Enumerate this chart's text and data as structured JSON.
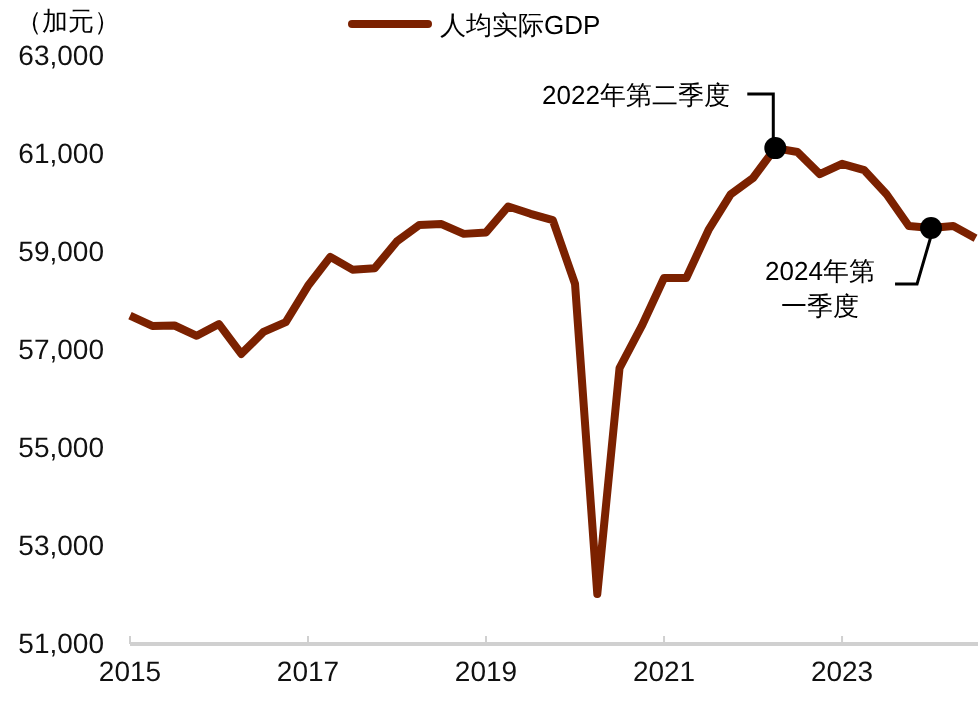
{
  "chart_data": {
    "type": "line",
    "ylabel": "（加元）",
    "legend": "top",
    "x": [
      2015,
      2015.25,
      2015.5,
      2015.75,
      2016,
      2016.25,
      2016.5,
      2016.75,
      2017,
      2017.25,
      2017.5,
      2017.75,
      2018,
      2018.25,
      2018.5,
      2018.75,
      2019,
      2019.25,
      2019.5,
      2019.75,
      2020,
      2020.25,
      2020.5,
      2020.75,
      2021,
      2021.25,
      2021.5,
      2021.75,
      2022,
      2022.25,
      2022.5,
      2022.75,
      2023,
      2023.25,
      2023.5,
      2023.75,
      2024,
      2024.25,
      2024.5
    ],
    "series": [
      {
        "name": "人均实际GDP",
        "color": "#7b2100",
        "values": [
          57700,
          57490,
          57500,
          57290,
          57530,
          56920,
          57370,
          57570,
          58310,
          58900,
          58640,
          58670,
          59220,
          59550,
          59570,
          59370,
          59400,
          59930,
          59780,
          59650,
          58350,
          52020,
          56630,
          57490,
          58470,
          58470,
          59450,
          60180,
          60510,
          61120,
          61040,
          60590,
          60800,
          60670,
          60180,
          59530,
          59490,
          59530,
          59280
        ]
      }
    ],
    "xlim": [
      2015,
      2024.55
    ],
    "xticks": [
      2015,
      2017,
      2019,
      2021,
      2023
    ],
    "ylim": [
      51000,
      63000
    ],
    "yticks": [
      {
        "value": 51000,
        "label": "51,000"
      },
      {
        "value": 53000,
        "label": "53,000"
      },
      {
        "value": 55000,
        "label": "55,000"
      },
      {
        "value": 57000,
        "label": "57,000"
      },
      {
        "value": 59000,
        "label": "59,000"
      },
      {
        "value": 61000,
        "label": "61,000"
      },
      {
        "value": 63000,
        "label": "63,000"
      }
    ],
    "grid": false,
    "marker": "none",
    "line_style": "solid",
    "annotations": [
      {
        "text": "2022年第二季度",
        "x": 2022.25,
        "y": 61120
      },
      {
        "text": "2024年第一季度",
        "x": 2024,
        "y": 59490
      }
    ]
  }
}
